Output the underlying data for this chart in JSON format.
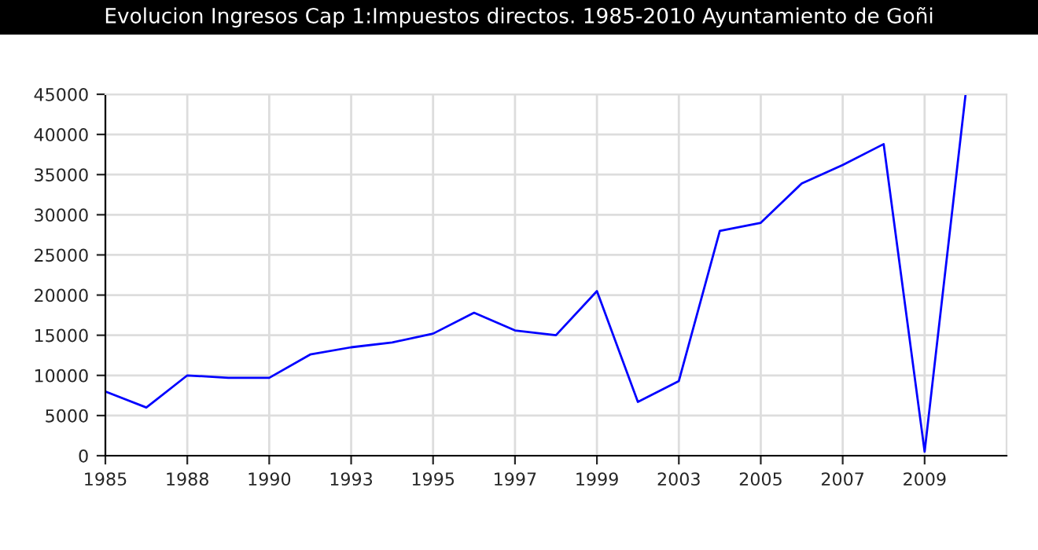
{
  "chart_data": {
    "type": "line",
    "title": "Evolucion Ingresos Cap 1:Impuestos directos. 1985-2010 Ayuntamiento de Goñi",
    "categories": [
      "1985",
      null,
      "1988",
      null,
      "1990",
      null,
      "1993",
      null,
      "1995",
      null,
      "1997",
      null,
      "1999",
      null,
      "2003",
      null,
      "2005",
      null,
      "2007",
      null,
      "2009",
      null
    ],
    "series": [
      {
        "color": "#0000ff",
        "values": [
          8000,
          6000,
          10000,
          9700,
          9700,
          12600,
          13500,
          14100,
          15200,
          17800,
          15600,
          15000,
          20500,
          6700,
          9300,
          28000,
          29000,
          33900,
          36200,
          38800,
          500,
          45000
        ]
      }
    ],
    "ylim": [
      0,
      45000
    ],
    "yticks": [
      0,
      5000,
      10000,
      15000,
      20000,
      25000,
      30000,
      35000,
      40000,
      45000
    ],
    "grid": true,
    "marker": "none",
    "line_style": "solid"
  }
}
